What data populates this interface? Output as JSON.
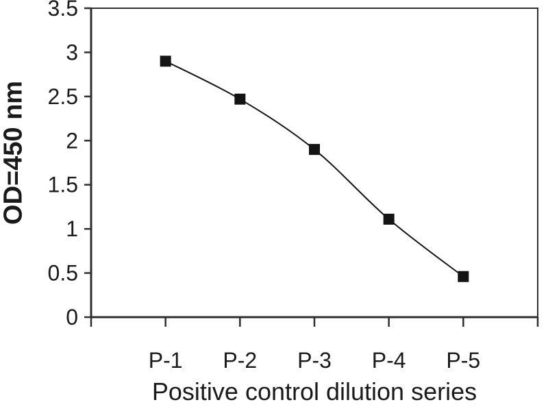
{
  "chart_data": {
    "type": "line",
    "xlabel": "Positive control dilution series",
    "ylabel": "OD=450 nm",
    "categories": [
      "P-1",
      "P-2",
      "P-3",
      "P-4",
      "P-5"
    ],
    "values": [
      2.9,
      2.47,
      1.9,
      1.11,
      0.46
    ],
    "ylim": [
      0,
      3.5
    ],
    "y_ticks": [
      0,
      0.5,
      1,
      1.5,
      2,
      2.5,
      3,
      3.5
    ],
    "y_tick_labels": [
      "0",
      "0.5",
      "1",
      "1.5",
      "2",
      "2.5",
      "3",
      "3.5"
    ],
    "x_axis": {
      "slots": 6,
      "category_slot_start": 1
    },
    "grid": false,
    "legend": "none",
    "marker": "square",
    "marker_size_px": 16,
    "line_style": "smooth",
    "colors": {
      "line": "#141414",
      "marker": "#141414",
      "axis": "#2e2e2e",
      "frame": "#2e2e2e",
      "text": "#1a1a1a",
      "background": "#ffffff"
    }
  }
}
